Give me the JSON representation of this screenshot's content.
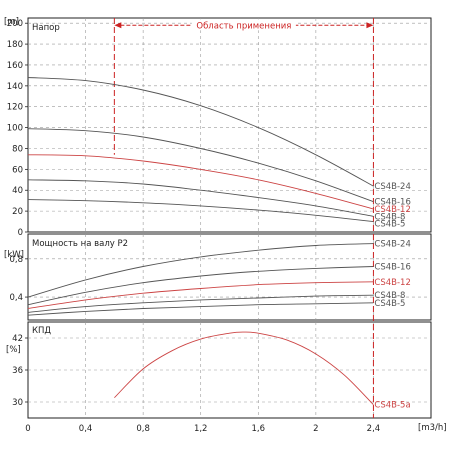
{
  "chart_data": [
    {
      "type": "line",
      "panel": "head",
      "title": "Напор",
      "y_unit": "[m]",
      "x_unit": "[m3/h]",
      "xlim": [
        0,
        2.8
      ],
      "ylim": [
        0,
        205
      ],
      "y_ticks": [
        0,
        20,
        40,
        60,
        80,
        100,
        120,
        140,
        160,
        180,
        200
      ],
      "x_ticks": [
        0,
        0.4,
        0.8,
        1.2,
        1.6,
        2.0,
        2.4
      ],
      "x_tick_labels": [
        "0",
        "0,4",
        "0,8",
        "1,2",
        "1,6",
        "2",
        "2,4"
      ],
      "range_annotation": {
        "text": "Область применения",
        "x_from": 0.6,
        "x_to": 2.4,
        "color": "#cc2222"
      },
      "series": [
        {
          "name": "CS4B-24",
          "color": "#555555",
          "x": [
            0,
            0.4,
            0.8,
            1.2,
            1.6,
            2.0,
            2.4
          ],
          "y": [
            148,
            145,
            136,
            121,
            100,
            74,
            44
          ]
        },
        {
          "name": "CS4B-16",
          "color": "#555555",
          "x": [
            0,
            0.4,
            0.8,
            1.2,
            1.6,
            2.0,
            2.4
          ],
          "y": [
            99,
            97,
            91,
            80,
            66,
            49,
            29
          ]
        },
        {
          "name": "CS4B-12",
          "color": "#cc4444",
          "x": [
            0,
            0.4,
            0.8,
            1.2,
            1.6,
            2.0,
            2.4
          ],
          "y": [
            74,
            73,
            68,
            60,
            50,
            37,
            22
          ]
        },
        {
          "name": "CS4B-8",
          "color": "#555555",
          "x": [
            0,
            0.4,
            0.8,
            1.2,
            1.6,
            2.0,
            2.4
          ],
          "y": [
            50,
            49,
            46,
            40,
            33,
            25,
            15
          ]
        },
        {
          "name": "CS4B-5",
          "color": "#555555",
          "x": [
            0,
            0.4,
            0.8,
            1.2,
            1.6,
            2.0,
            2.4
          ],
          "y": [
            31,
            30,
            28,
            25,
            21,
            16,
            10
          ]
        }
      ]
    },
    {
      "type": "line",
      "panel": "power",
      "title": "Мощность на валу P2",
      "y_unit": "[kW]",
      "ylim": [
        0.16,
        1.06
      ],
      "y_ticks": [
        0.4,
        0.8
      ],
      "y_tick_labels": [
        "0,4",
        "0,8"
      ],
      "series": [
        {
          "name": "CS4B-24",
          "color": "#555555",
          "x": [
            0,
            0.4,
            0.8,
            1.2,
            1.6,
            2.0,
            2.4
          ],
          "y": [
            0.4,
            0.58,
            0.72,
            0.82,
            0.89,
            0.94,
            0.96
          ]
        },
        {
          "name": "CS4B-16",
          "color": "#555555",
          "x": [
            0,
            0.4,
            0.8,
            1.2,
            1.6,
            2.0,
            2.4
          ],
          "y": [
            0.32,
            0.45,
            0.55,
            0.62,
            0.67,
            0.7,
            0.72
          ]
        },
        {
          "name": "CS4B-12",
          "color": "#cc4444",
          "x": [
            0,
            0.4,
            0.8,
            1.2,
            1.6,
            2.0,
            2.4
          ],
          "y": [
            0.28,
            0.37,
            0.44,
            0.49,
            0.53,
            0.55,
            0.56
          ]
        },
        {
          "name": "CS4B-8",
          "color": "#555555",
          "x": [
            0,
            0.4,
            0.8,
            1.2,
            1.6,
            2.0,
            2.4
          ],
          "y": [
            0.24,
            0.3,
            0.34,
            0.37,
            0.39,
            0.41,
            0.42
          ]
        },
        {
          "name": "CS4B-5",
          "color": "#555555",
          "x": [
            0,
            0.4,
            0.8,
            1.2,
            1.6,
            2.0,
            2.4
          ],
          "y": [
            0.21,
            0.25,
            0.28,
            0.3,
            0.32,
            0.33,
            0.34
          ]
        }
      ]
    },
    {
      "type": "line",
      "panel": "efficiency",
      "title": "КПД",
      "y_unit": "[%]",
      "ylim": [
        27,
        45
      ],
      "y_ticks": [
        30,
        36,
        42
      ],
      "series": [
        {
          "name": "CS4B-5a",
          "color": "#cc4444",
          "x": [
            0.6,
            0.8,
            1.0,
            1.2,
            1.4,
            1.5,
            1.6,
            1.8,
            2.0,
            2.2,
            2.4
          ],
          "y": [
            30.8,
            36.2,
            39.6,
            41.8,
            42.9,
            43.1,
            42.9,
            41.6,
            39.0,
            35.0,
            29.5
          ]
        }
      ]
    }
  ]
}
